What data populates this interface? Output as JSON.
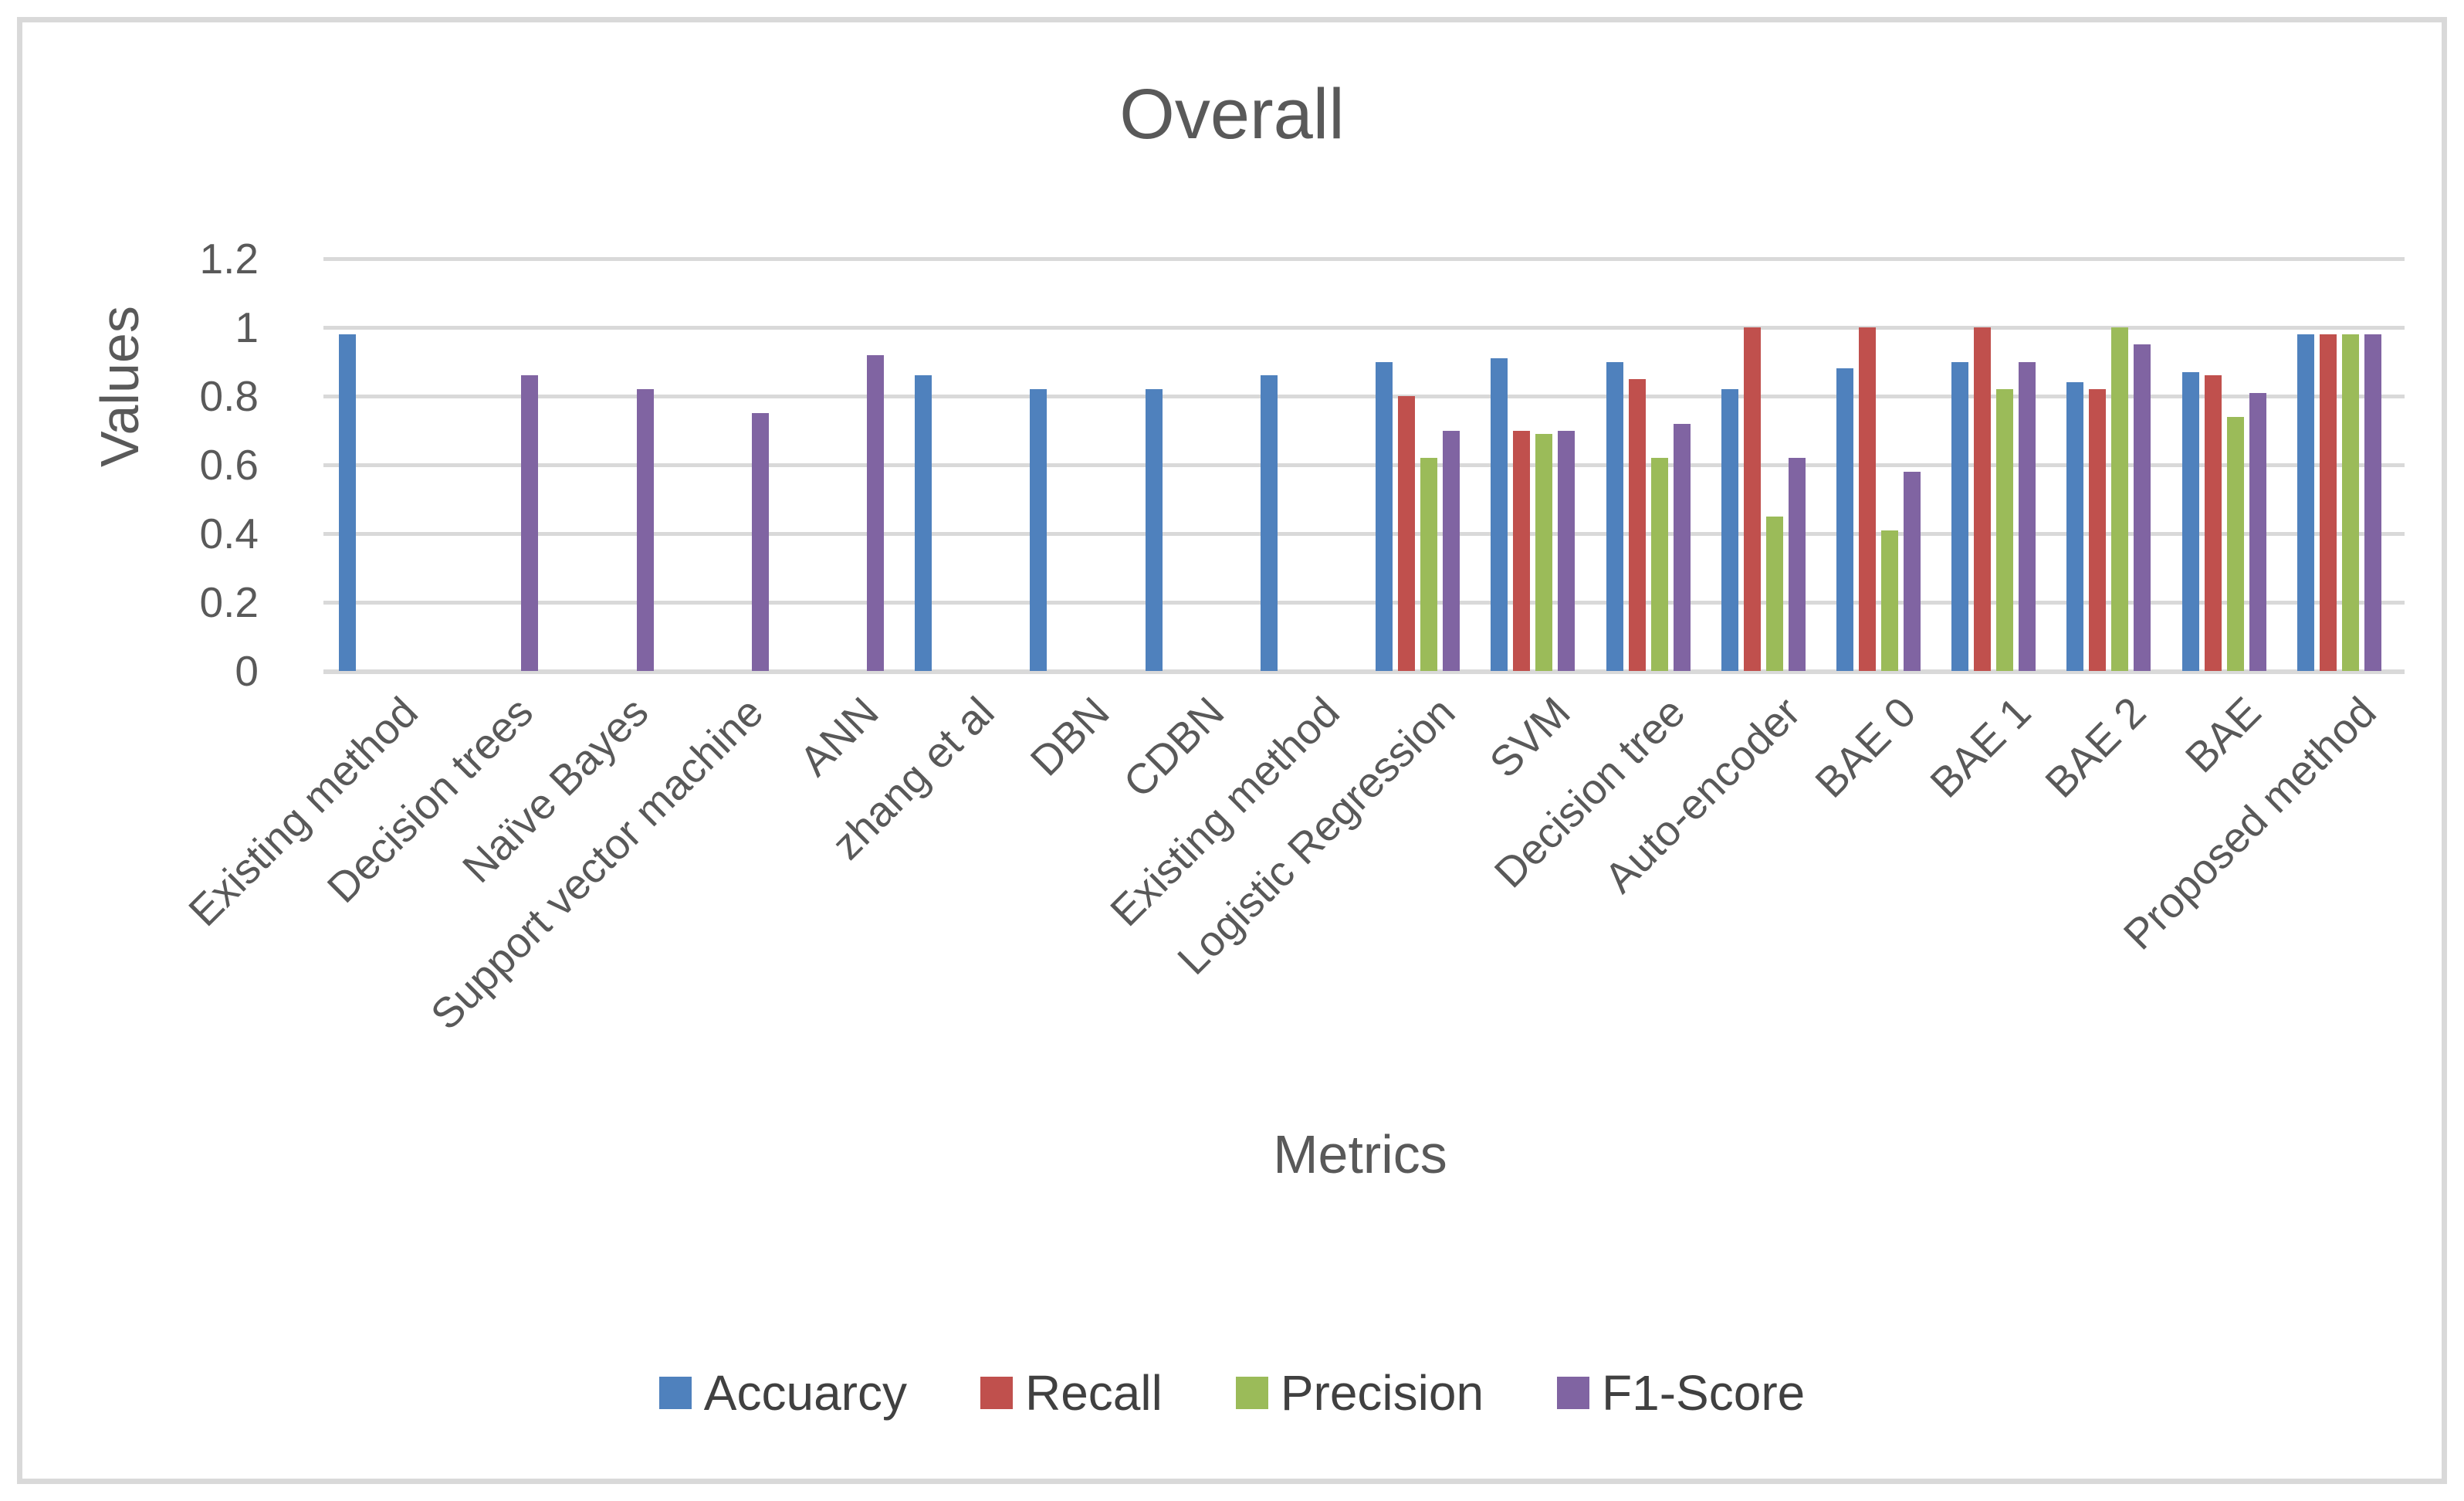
{
  "title": "Overall",
  "axes": {
    "y_label": "Values",
    "x_label": "Metrics",
    "y_tick_labels": [
      "1.2",
      "1",
      "0.8",
      "0.6",
      "0.4",
      "0.2",
      "0"
    ],
    "y_tick_values": [
      1.2,
      1.0,
      0.8,
      0.6,
      0.4,
      0.2,
      0
    ]
  },
  "colors": {
    "accuarcy": "#4F81BD",
    "recall": "#C0504D",
    "precision": "#9BBB59",
    "f1_score": "#8064A2",
    "text": "#595959",
    "gridline": "#D9D9D9",
    "border": "#D9D9D9"
  },
  "chart_data": {
    "type": "bar",
    "title": "Overall",
    "xlabel": "Metrics",
    "ylabel": "Values",
    "ylim": [
      0,
      1.2
    ],
    "grid": true,
    "legend_position": "bottom",
    "categories": [
      "Existing method",
      "Decision trees",
      "Naïve Bayes",
      "Support vector machine",
      "ANN",
      "zhang et al",
      "DBN",
      "CDBN",
      "Existing method",
      "Logistic Regression",
      "SVM",
      "Decision tree",
      "Auto-encoder",
      "BAE 0",
      "BAE 1",
      "BAE 2",
      "BAE",
      "Proposed method"
    ],
    "series": [
      {
        "name": "Accuarcy",
        "color": "#4F81BD",
        "values": [
          0.98,
          null,
          null,
          null,
          null,
          0.86,
          0.82,
          0.82,
          0.86,
          0.9,
          0.91,
          0.9,
          0.82,
          0.88,
          0.9,
          0.84,
          0.87,
          0.98
        ]
      },
      {
        "name": "Recall",
        "color": "#C0504D",
        "values": [
          null,
          null,
          null,
          null,
          null,
          null,
          null,
          null,
          null,
          0.8,
          0.7,
          0.85,
          1.0,
          1.0,
          1.0,
          0.82,
          0.86,
          0.98
        ]
      },
      {
        "name": "Precision",
        "color": "#9BBB59",
        "values": [
          null,
          null,
          null,
          null,
          null,
          null,
          null,
          null,
          null,
          0.62,
          0.69,
          0.62,
          0.45,
          0.41,
          0.82,
          1.0,
          0.74,
          0.98
        ]
      },
      {
        "name": "F1-Score",
        "color": "#8064A2",
        "values": [
          null,
          0.86,
          0.82,
          0.75,
          0.92,
          null,
          null,
          null,
          null,
          0.7,
          0.7,
          0.72,
          0.62,
          0.58,
          0.9,
          0.95,
          0.81,
          0.98
        ]
      }
    ]
  }
}
